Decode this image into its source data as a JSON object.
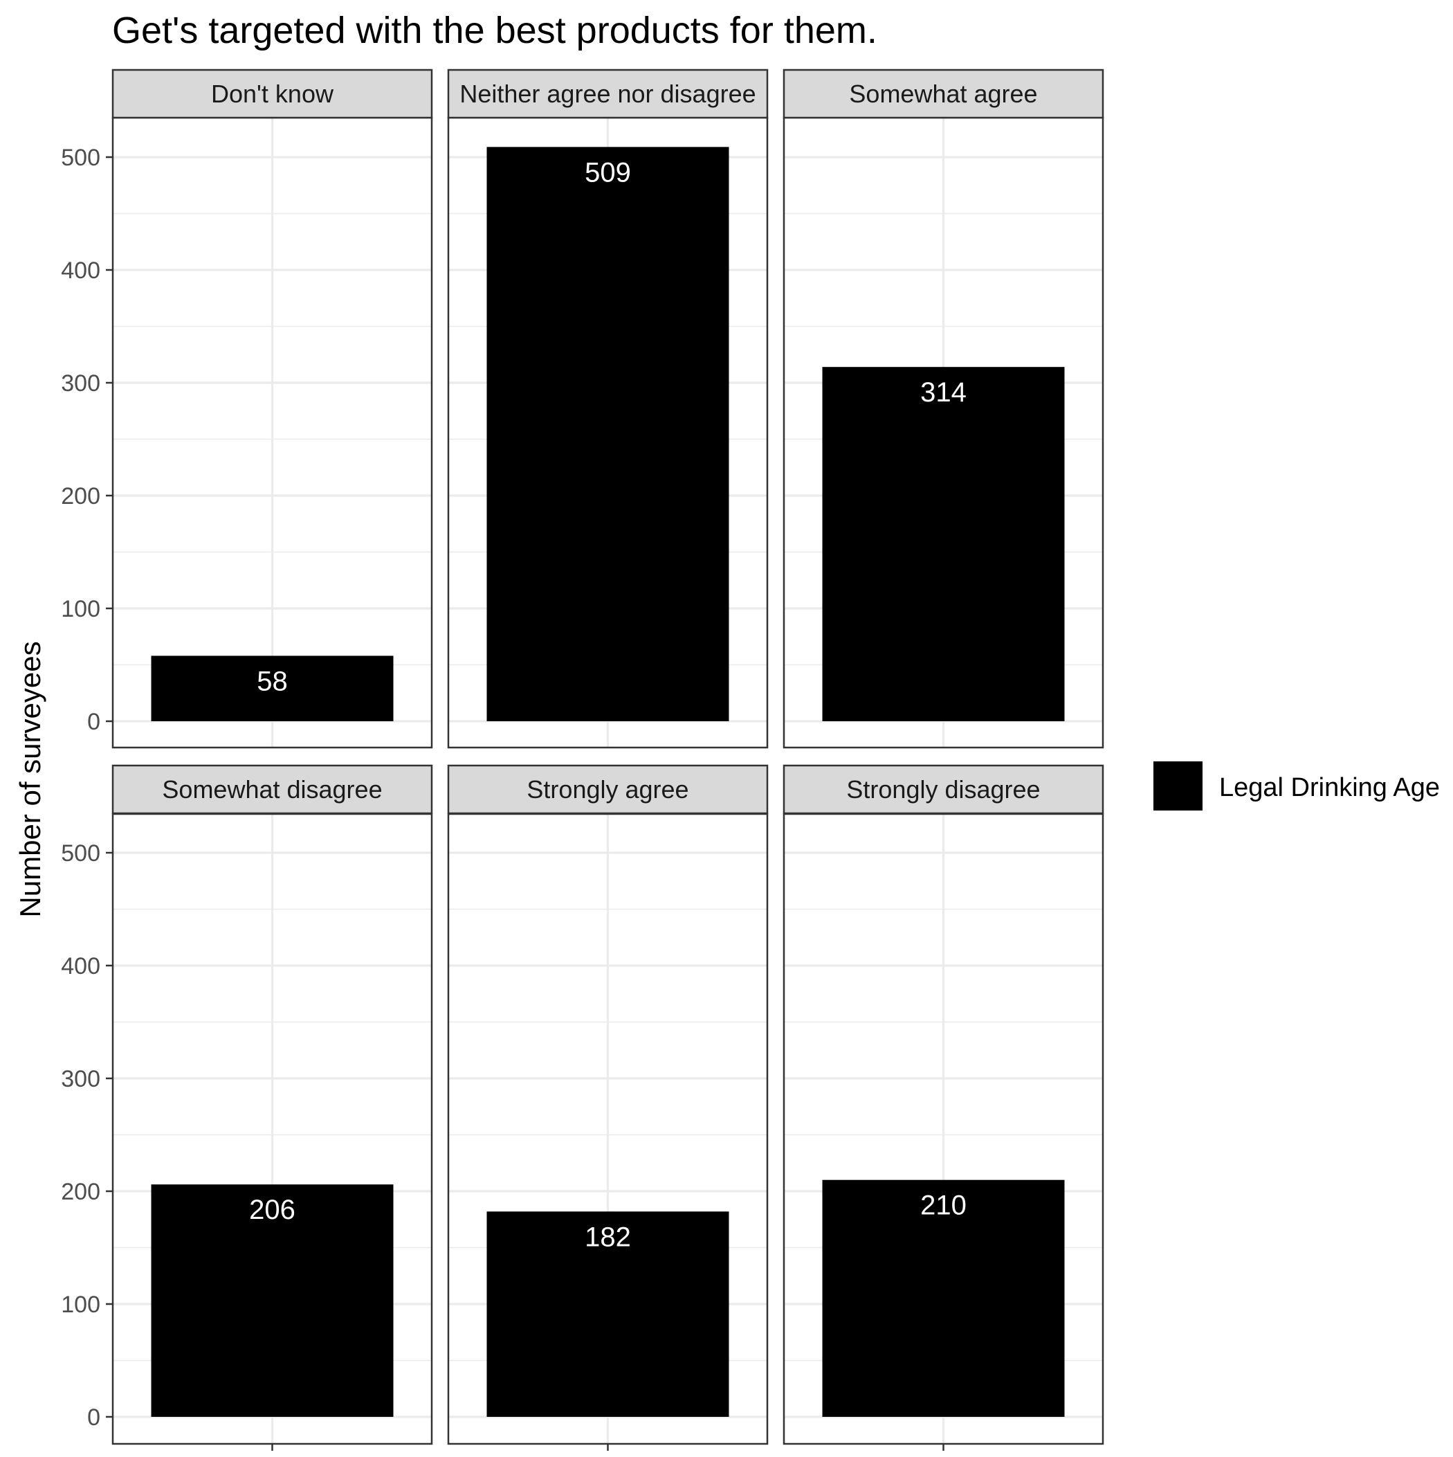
{
  "chart_data": {
    "type": "bar",
    "title": "Get's targeted with the best products for them.",
    "xlabel": "",
    "ylabel": "Number of surveyees",
    "ylim": [
      0,
      550
    ],
    "yticks": [
      0,
      100,
      200,
      300,
      400,
      500
    ],
    "grid": true,
    "facets": [
      "Don't know",
      "Neither agree nor disagree",
      "Somewhat agree",
      "Somewhat disagree",
      "Strongly agree",
      "Strongly disagree"
    ],
    "series": [
      {
        "name": "Legal Drinking Age",
        "values": [
          58,
          509,
          314,
          206,
          182,
          210
        ]
      }
    ],
    "data_labels": [
      "58",
      "509",
      "314",
      "206",
      "182",
      "210"
    ],
    "legend": {
      "position": "right",
      "entries": [
        "Legal Drinking Age"
      ]
    },
    "colors": {
      "bar": "#000000",
      "strip": "#d9d9d9",
      "grid": "#ebebeb",
      "label": "#ffffff"
    }
  }
}
